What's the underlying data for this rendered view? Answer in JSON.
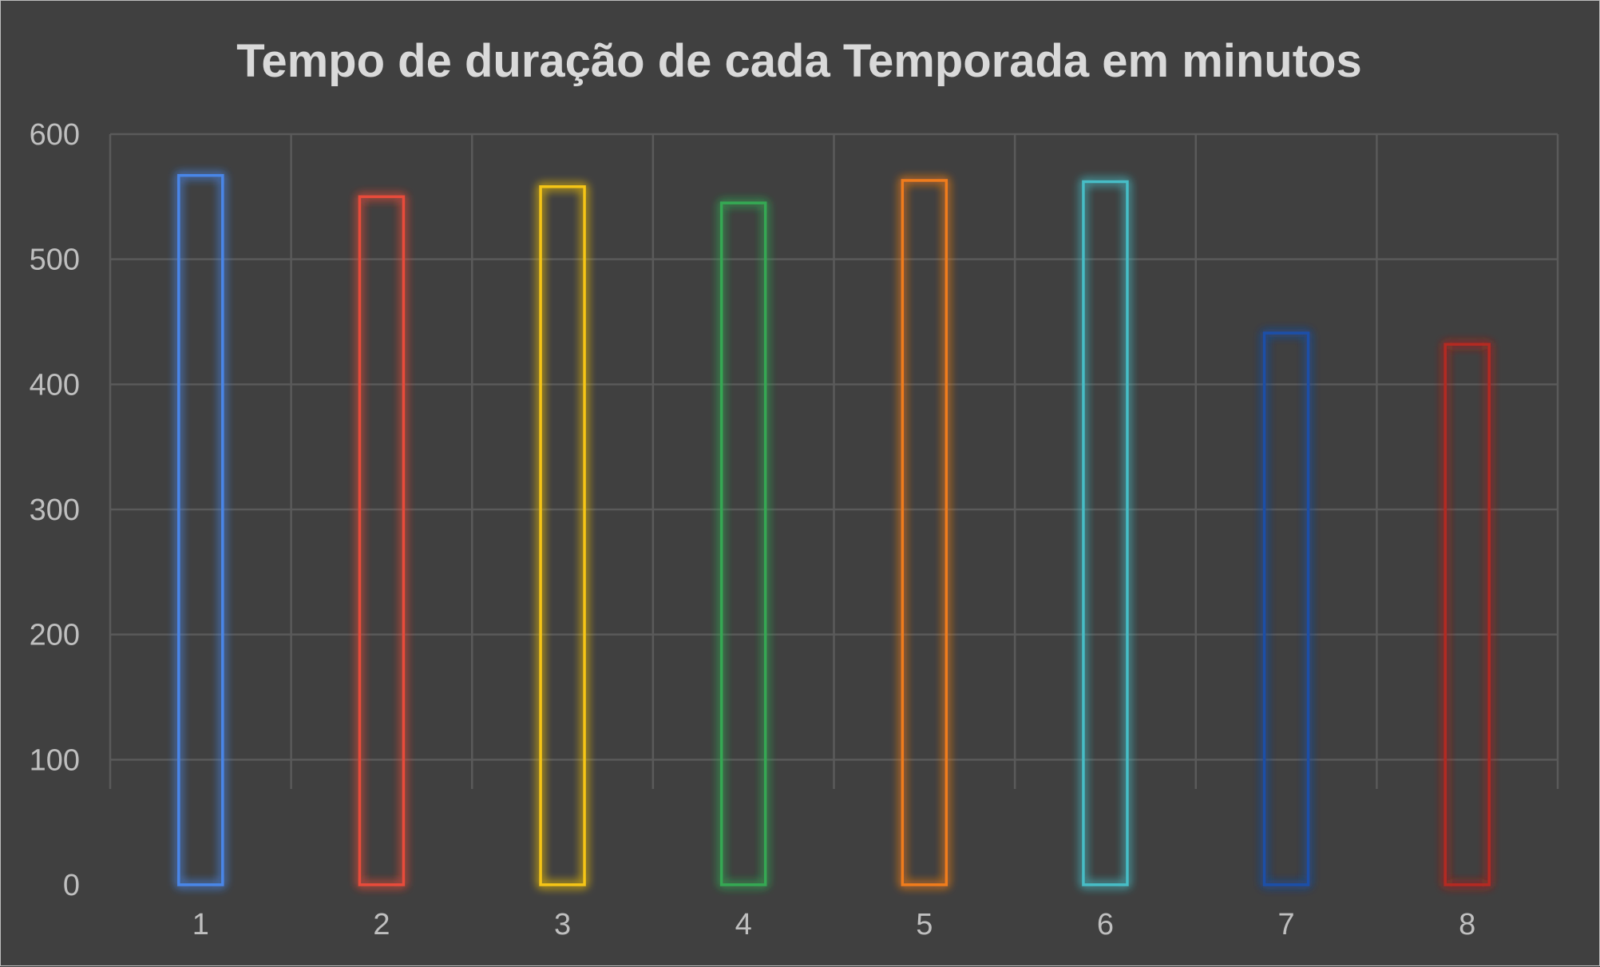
{
  "chart_data": {
    "type": "bar",
    "title": "Tempo de duração de cada Temporada em minutos",
    "xlabel": "",
    "ylabel": "",
    "categories": [
      "1",
      "2",
      "3",
      "4",
      "5",
      "6",
      "7",
      "8"
    ],
    "values": [
      567,
      550,
      558,
      545,
      563,
      562,
      441,
      432
    ],
    "ylim": [
      0,
      600
    ],
    "yticks": [
      "0",
      "100",
      "200",
      "300",
      "400",
      "500",
      "600"
    ],
    "grid": true,
    "legend": "none",
    "bar_colors": [
      "#4a86e8",
      "#e84b3a",
      "#f5c518",
      "#34a853",
      "#f07c1e",
      "#46bdc6",
      "#1e4fa8",
      "#b42a22"
    ],
    "background_color": "#404040"
  }
}
